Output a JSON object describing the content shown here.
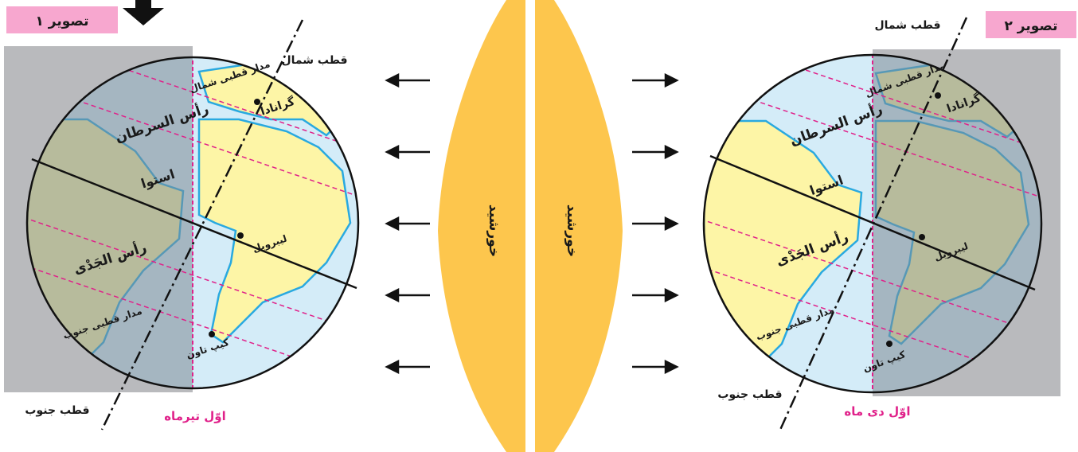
{
  "figure1": {
    "tag": "تصویر ۱",
    "date": "اوّل تیرماه",
    "north_pole": "قطب شمال",
    "south_pole": "قطب جنوب",
    "arctic_circle": "مدار قطبی شمال",
    "antarctic_circle": "مدار قطبی جنوب",
    "tropic_cancer": "رأس السرطان",
    "equator": "استوا",
    "tropic_capricorn": "رأس الجَدْی",
    "city_granada": "گرانادا",
    "city_libreville": "لیبرویل",
    "city_capetown": "کیپ تاون"
  },
  "figure2": {
    "tag": "تصویر ۲",
    "date": "اوّل دی ماه",
    "north_pole": "قطب شمال",
    "south_pole": "قطب جنوب",
    "arctic_circle": "مدار قطبی شمال",
    "antarctic_circle": "مدار قطبی جنوب",
    "tropic_cancer": "رأس السرطان",
    "equator": "استوا",
    "tropic_capricorn": "رأس الجَدْی",
    "city_granada": "گرانادا",
    "city_libreville": "لیبرویل",
    "city_capetown": "کیپ تاون"
  },
  "sun": {
    "left_label": "خورشید",
    "right_label": "خورشید"
  },
  "colors": {
    "night_shade": "#95a3ad",
    "background_panel": "#b9babd",
    "land": "#fdf5a6",
    "ocean": "#d4ecf8",
    "coast": "#29a9e0",
    "tropic_lines": "#e0218a",
    "tag_fill": "#f7a7cf",
    "sun": "#fdc64d"
  }
}
